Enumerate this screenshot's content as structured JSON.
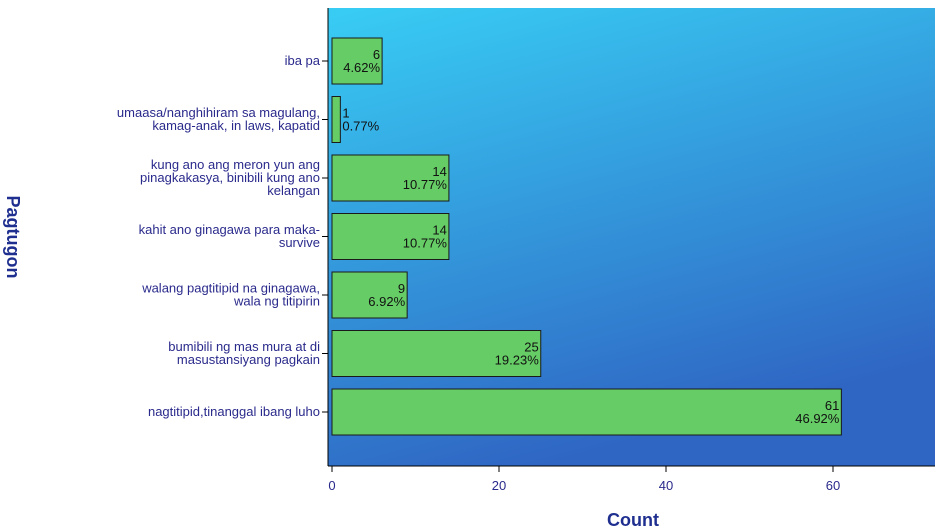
{
  "chart_data": {
    "type": "bar",
    "orientation": "horizontal",
    "categories": [
      [
        "iba pa"
      ],
      [
        "umaasa/nanghihiram sa magulang,",
        "kamag-anak, in laws, kapatid"
      ],
      [
        "kung ano ang meron yun ang",
        "pinagkakasya, binibili kung ano",
        "kelangan"
      ],
      [
        "kahit ano ginagawa para maka-",
        "survive"
      ],
      [
        "walang pagtitipid na ginagawa,",
        "wala ng titipirin"
      ],
      [
        "bumibili ng mas mura at di",
        "masustansiyang pagkain"
      ],
      [
        "nagtitipid,tinanggal ibang luho"
      ]
    ],
    "values": [
      6,
      1,
      14,
      14,
      9,
      25,
      61
    ],
    "percent_labels": [
      "4.62%",
      "0.77%",
      "10.77%",
      "10.77%",
      "6.92%",
      "19.23%",
      "46.92%"
    ],
    "count_labels": [
      "6",
      "1",
      "14",
      "14",
      "9",
      "25",
      "61"
    ],
    "xlabel": "Count",
    "ylabel": "Pagtugon",
    "x_ticks": [
      "0",
      "20",
      "40",
      "60"
    ],
    "xlim": [
      0,
      72
    ],
    "grid": false,
    "legend": "none",
    "colors": {
      "bar": "#66cc66",
      "bar_stroke": "#1a1a1a",
      "background_top": "#35c8f2",
      "background_bottom": "#2f68c6",
      "text": "#2a2a8c"
    }
  }
}
